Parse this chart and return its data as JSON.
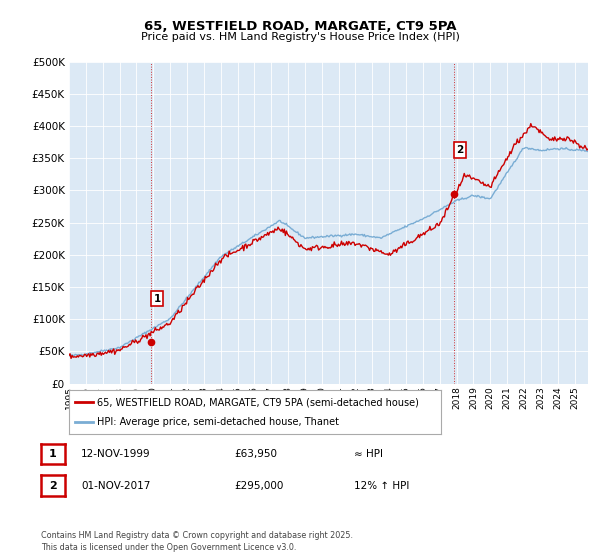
{
  "title": "65, WESTFIELD ROAD, MARGATE, CT9 5PA",
  "subtitle": "Price paid vs. HM Land Registry's House Price Index (HPI)",
  "hpi_label": "HPI: Average price, semi-detached house, Thanet",
  "price_label": "65, WESTFIELD ROAD, MARGATE, CT9 5PA (semi-detached house)",
  "annotation1": {
    "label": "1",
    "date": "12-NOV-1999",
    "price": "£63,950",
    "hpi_rel": "≈ HPI"
  },
  "annotation2": {
    "label": "2",
    "date": "01-NOV-2017",
    "price": "£295,000",
    "hpi_rel": "12% ↑ HPI"
  },
  "copyright": "Contains HM Land Registry data © Crown copyright and database right 2025.\nThis data is licensed under the Open Government Licence v3.0.",
  "ylim": [
    0,
    500000
  ],
  "yticks": [
    0,
    50000,
    100000,
    150000,
    200000,
    250000,
    300000,
    350000,
    400000,
    450000,
    500000
  ],
  "price_color": "#cc0000",
  "hpi_color": "#7aadd4",
  "plot_bg": "#dce9f5",
  "ann_marker_color": "#cc0000",
  "ann1_x": 1999.87,
  "ann1_y": 63950,
  "ann2_x": 2017.84,
  "ann2_y": 295000,
  "xmin": 1995,
  "xmax": 2025.8
}
